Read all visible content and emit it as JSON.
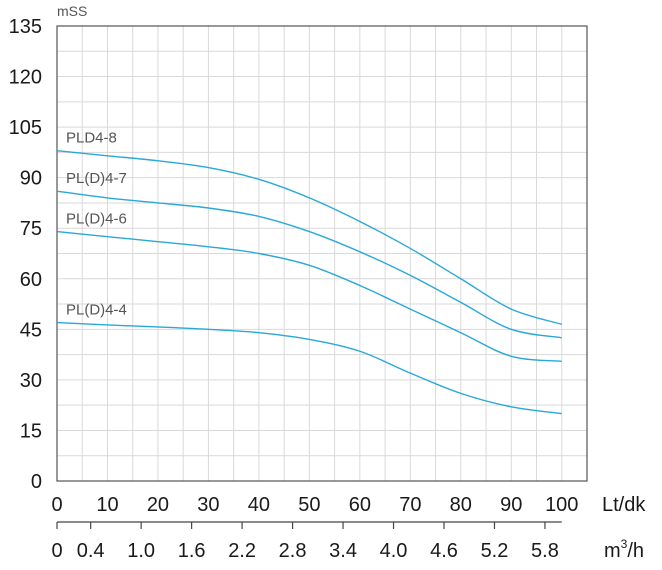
{
  "chart_data": {
    "type": "line",
    "title": "",
    "ylabel": "mSS",
    "xlabel": "Lt/dk",
    "xlabel2_base": "m",
    "xlabel2_sup": "3",
    "xlabel2_tail": "/h",
    "xlim": [
      0,
      105
    ],
    "ylim": [
      0,
      135
    ],
    "x_ticks": [
      "0",
      "10",
      "20",
      "30",
      "40",
      "50",
      "60",
      "70",
      "80",
      "90",
      "100"
    ],
    "y_ticks": [
      "0",
      "15",
      "30",
      "45",
      "60",
      "75",
      "90",
      "105",
      "120",
      "135"
    ],
    "x2_ticks": [
      "0",
      "0.4",
      "1.0",
      "1.6",
      "2.2",
      "2.8",
      "3.4",
      "4.0",
      "4.6",
      "5.2",
      "5.8"
    ],
    "x2_tick_positions_lt_dk": [
      0,
      6.67,
      16.67,
      26.67,
      36.67,
      46.67,
      56.67,
      66.67,
      76.67,
      86.67,
      96.67
    ],
    "grid": true,
    "line_color": "#29a8d8",
    "series": [
      {
        "name": "PLD4-8",
        "x": [
          0,
          10,
          20,
          30,
          40,
          50,
          60,
          70,
          80,
          90,
          100
        ],
        "y": [
          98,
          96.5,
          95,
          93,
          89.5,
          84,
          77,
          69,
          60,
          51,
          46.5
        ]
      },
      {
        "name": "PL(D)4-7",
        "x": [
          0,
          10,
          20,
          30,
          40,
          50,
          60,
          70,
          80,
          90,
          100
        ],
        "y": [
          86,
          84,
          82.5,
          81,
          78.5,
          74,
          68,
          61,
          53,
          45,
          42.5
        ]
      },
      {
        "name": "PL(D)4-6",
        "x": [
          0,
          10,
          20,
          30,
          40,
          50,
          60,
          70,
          80,
          90,
          100
        ],
        "y": [
          74,
          72.5,
          71,
          69.5,
          67.5,
          64,
          58,
          51,
          44,
          37,
          35.5
        ]
      },
      {
        "name": "PL(D)4-4",
        "x": [
          0,
          10,
          20,
          30,
          40,
          50,
          60,
          70,
          80,
          90,
          100
        ],
        "y": [
          47,
          46.3,
          45.7,
          45,
          44,
          42,
          38.5,
          32,
          26,
          22,
          20
        ]
      }
    ]
  }
}
